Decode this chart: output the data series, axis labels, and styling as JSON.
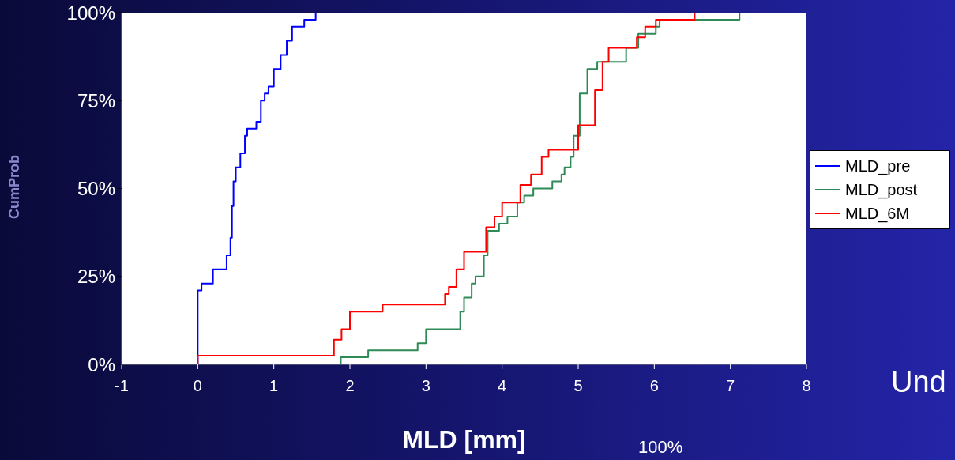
{
  "chart_data": {
    "type": "step",
    "xlabel": "MLD [mm]",
    "ylabel": "CumProb",
    "xlim": [
      -1,
      8
    ],
    "xticks": [
      -1,
      0,
      1,
      2,
      3,
      4,
      5,
      6,
      7,
      8
    ],
    "ylim": [
      0,
      100
    ],
    "yticks": [
      {
        "value": 0,
        "label": "0%"
      },
      {
        "value": 25,
        "label": "25%"
      },
      {
        "value": 50,
        "label": "50%"
      },
      {
        "value": 75,
        "label": "75%"
      },
      {
        "value": 100,
        "label": "100%"
      }
    ],
    "legend": "right",
    "marker": "none",
    "line_style": "solid",
    "series": [
      {
        "name": "MLD_pre",
        "color": "#0000ff",
        "x": [
          0,
          0,
          0.05,
          0.2,
          0.38,
          0.43,
          0.45,
          0.47,
          0.5,
          0.56,
          0.62,
          0.65,
          0.77,
          0.83,
          0.88,
          0.93,
          1.0,
          1.09,
          1.17,
          1.24,
          1.4,
          1.55,
          8
        ],
        "values": [
          0,
          21,
          23,
          27,
          31,
          36,
          45,
          52,
          56,
          60,
          65,
          67,
          69,
          75,
          77,
          79,
          84,
          88,
          92,
          96,
          98,
          100,
          100
        ]
      },
      {
        "name": "MLD_post",
        "color": "#2e8b57",
        "x": [
          0,
          1.88,
          2.24,
          2.89,
          3.0,
          3.45,
          3.5,
          3.6,
          3.65,
          3.76,
          3.81,
          3.96,
          4.07,
          4.2,
          4.29,
          4.41,
          4.66,
          4.78,
          4.82,
          4.9,
          4.94,
          5.02,
          5.12,
          5.25,
          5.63,
          5.79,
          6.02,
          6.07,
          7.12
        ],
        "values": [
          0,
          2,
          4,
          6,
          10,
          15,
          19,
          23,
          25,
          31,
          38,
          40,
          42,
          46,
          48,
          50,
          52,
          54,
          56,
          59,
          65,
          77,
          84,
          86,
          90,
          94,
          96,
          98,
          100
        ]
      },
      {
        "name": "MLD_6M",
        "color": "#ff0000",
        "x": [
          0,
          0,
          1.79,
          1.89,
          2.0,
          2.43,
          3.25,
          3.3,
          3.4,
          3.5,
          3.79,
          3.9,
          4.0,
          4.24,
          4.38,
          4.52,
          4.61,
          5.0,
          5.22,
          5.32,
          5.4,
          5.77,
          5.88,
          6.02,
          6.53,
          8
        ],
        "values": [
          0,
          2.5,
          7,
          10,
          15,
          17,
          20,
          22,
          27,
          32,
          39,
          42,
          46,
          51,
          54,
          59,
          61,
          68,
          78,
          86,
          90,
          93,
          96,
          98,
          100,
          100
        ]
      }
    ],
    "annotations": [
      "Und",
      "100%"
    ]
  }
}
